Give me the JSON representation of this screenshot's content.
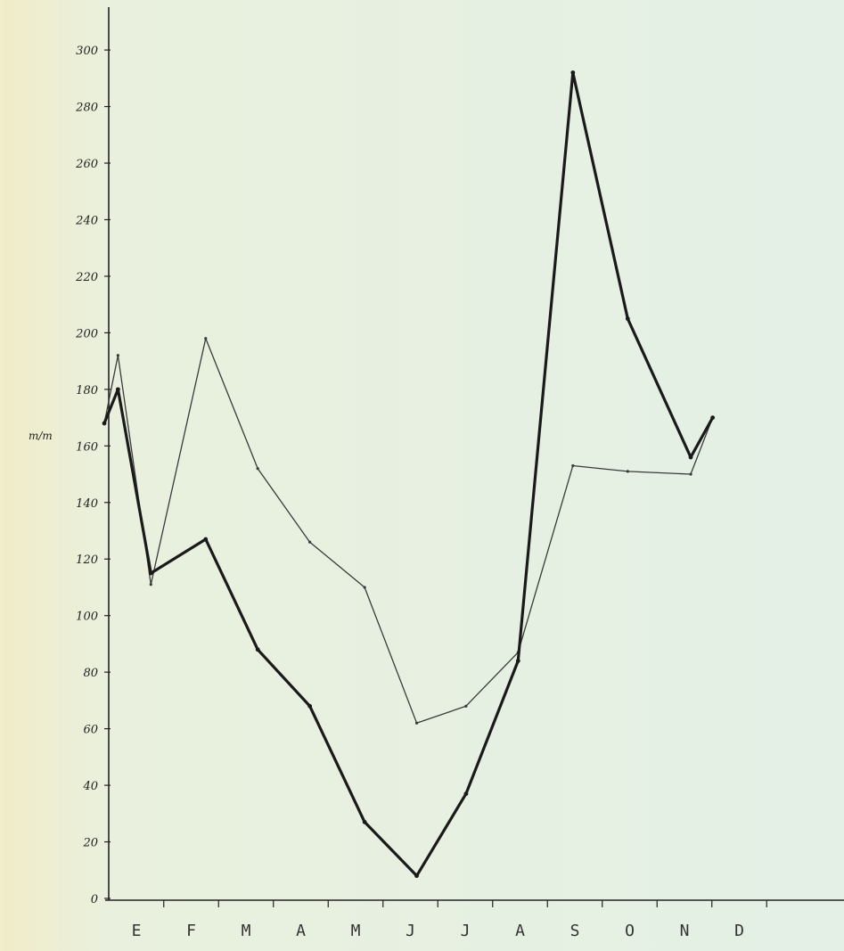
{
  "chart_data": {
    "type": "line",
    "title": "",
    "xlabel": "",
    "ylabel": "m/m",
    "categories": [
      "E",
      "F",
      "M",
      "A",
      "M",
      "J",
      "J",
      "A",
      "S",
      "O",
      "N",
      "D"
    ],
    "ylim": [
      0,
      310
    ],
    "yticks": [
      0,
      20,
      40,
      60,
      80,
      100,
      120,
      140,
      160,
      180,
      200,
      220,
      240,
      260,
      280,
      300
    ],
    "ytick_labels": [
      "0",
      "20",
      "40",
      "60",
      "80",
      "100",
      "120",
      "140",
      "160",
      "180",
      "200",
      "220",
      "240",
      "260",
      "280",
      "300"
    ],
    "grid": false,
    "legend": "none",
    "series": [
      {
        "style": "thick",
        "color": "#1a1a1a",
        "x": [
          0.0,
          0.25,
          0.85,
          1.85,
          2.8,
          3.75,
          4.75,
          5.7,
          6.6,
          7.55,
          8.55,
          9.55,
          10.7,
          11.1
        ],
        "values": [
          168,
          180,
          115,
          127,
          88,
          68,
          27,
          8,
          37,
          84,
          292,
          205,
          156,
          170
        ]
      },
      {
        "style": "thin",
        "color": "#3a3a3a",
        "x": [
          0.0,
          0.25,
          0.85,
          1.85,
          2.8,
          3.75,
          4.75,
          5.7,
          6.6,
          7.55,
          8.55,
          9.55,
          10.7,
          11.1
        ],
        "values": [
          168,
          192,
          111,
          198,
          152,
          126,
          110,
          62,
          68,
          87,
          153,
          151,
          150,
          170
        ]
      }
    ]
  }
}
